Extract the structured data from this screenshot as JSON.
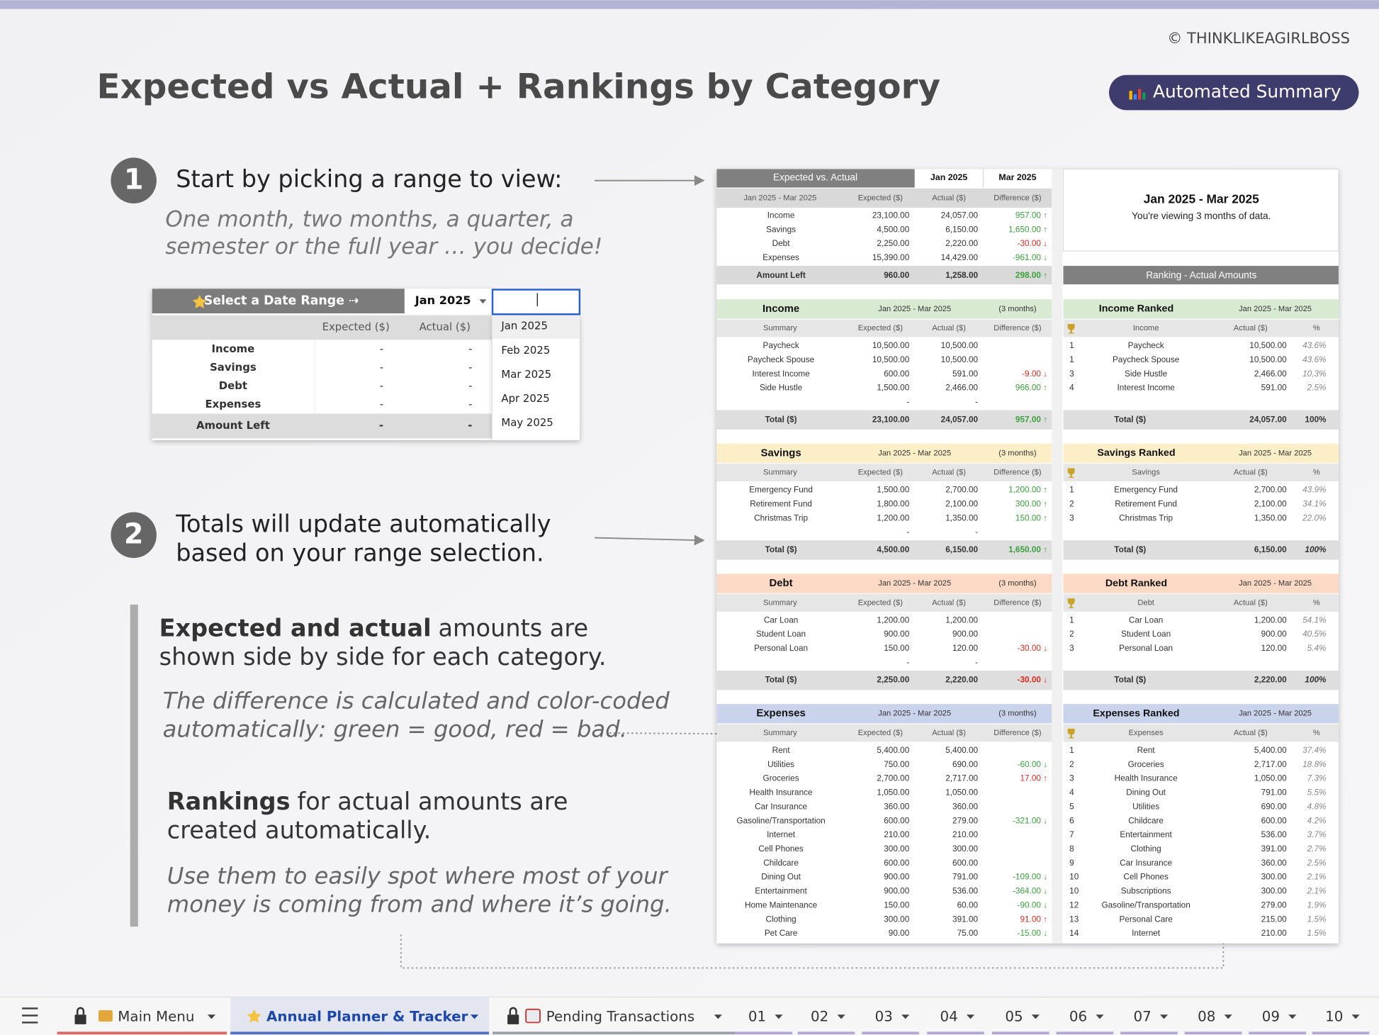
{
  "copyright": "© THINKLIKEAGIRLBOSS",
  "title": "Expected vs Actual + Rankings by Category",
  "badge": "Automated Summary",
  "steps": [
    {
      "number": "1",
      "heading": [
        "Start by picking a range to view:"
      ],
      "subtext": [
        "One month, two months, a quarter, a",
        "semester or the full year … you decide!"
      ]
    },
    {
      "number": "2",
      "heading": [
        "Totals will update automatically",
        "based on your range selection."
      ]
    }
  ],
  "notes": [
    {
      "bold": "Expected and actual",
      "rest": "amounts are",
      "line2": "shown side by side for each category.",
      "italic": [
        "The difference is calculated and color-coded",
        "automatically: green = good, red = bad."
      ]
    },
    {
      "bold": "Rankings",
      "rest": "for actual amounts are",
      "line2": "created automatically.",
      "italic": [
        "Use them to easily spot where most of your",
        "money is coming from and where it’s going."
      ]
    }
  ],
  "widget": {
    "label": "Select a Date Range ⇢",
    "selected": "Jan 2025",
    "columns": [
      "Expected ($)",
      "Actual ($)"
    ],
    "rows": [
      [
        "Income",
        "-",
        "-"
      ],
      [
        "Savings",
        "-",
        "-"
      ],
      [
        "Debt",
        "-",
        "-"
      ],
      [
        "Expenses",
        "-",
        "-"
      ]
    ],
    "total": [
      "Amount Left",
      "-",
      "-"
    ],
    "options": [
      "Jan 2025",
      "Feb 2025",
      "Mar 2025",
      "Apr 2025",
      "May 2025"
    ]
  },
  "sheet": {
    "tone_colors": {
      "good": "#3aa13c",
      "bad": "#e02b20"
    },
    "overview": {
      "title": "Expected vs. Actual",
      "from": "Jan 2025",
      "to": "Mar 2025",
      "columns": [
        "Jan 2025 - Mar 2025",
        "Expected ($)",
        "Actual ($)",
        "Difference ($)"
      ],
      "rows": [
        [
          "Income",
          "23,100.00",
          "24,057.00",
          "957.00 ↑"
        ],
        [
          "Savings",
          "4,500.00",
          "6,150.00",
          "1,650.00 ↑"
        ],
        [
          "Debt",
          "2,250.00",
          "2,220.00",
          "-30.00 ↓"
        ],
        [
          "Expenses",
          "15,390.00",
          "14,429.00",
          "-961.00 ↓"
        ]
      ],
      "tones": [
        "good",
        "good",
        "bad",
        "good"
      ],
      "total": [
        "Amount Left",
        "960.00",
        "1,258.00",
        "298.00 ↑"
      ],
      "total_tone": "good"
    },
    "info": {
      "range": "Jan 2025 - Mar 2025",
      "note": "You're viewing 3 months of data."
    },
    "ranking_title": "Ranking - Actual Amounts",
    "sections": [
      {
        "name": "Income",
        "color": "#d9ead3",
        "range": "Jan 2025 - Mar 2025",
        "months": "(3 months)",
        "columns": [
          "Summary",
          "Expected ($)",
          "Actual ($)",
          "Difference ($)"
        ],
        "rows": [
          [
            "Paycheck",
            "10,500.00",
            "10,500.00"
          ],
          [
            "Paycheck Spouse",
            "10,500.00",
            "10,500.00"
          ],
          [
            "Interest Income",
            "600.00",
            "591.00",
            "-9.00 ↓"
          ],
          [
            "Side Hustle",
            "1,500.00",
            "2,466.00",
            "966.00 ↑"
          ]
        ],
        "tones": [
          null,
          null,
          "bad",
          "good"
        ],
        "placeholder": [
          "-",
          "-"
        ],
        "total": [
          "Total ($)",
          "23,100.00",
          "24,057.00",
          "957.00 ↑"
        ],
        "total_tone": "good",
        "ranked": {
          "name": "Income Ranked",
          "range": "Jan 2025 - Mar 2025",
          "columns": [
            "Income",
            "Actual ($)",
            "%"
          ],
          "rows": [
            [
              "1",
              "Paycheck",
              "10,500.00",
              "43.6%"
            ],
            [
              "1",
              "Paycheck Spouse",
              "10,500.00",
              "43.6%"
            ],
            [
              "3",
              "Side Hustle",
              "2,466.00",
              "10.3%"
            ],
            [
              "4",
              "Interest Income",
              "591.00",
              "2.5%"
            ]
          ],
          "total": [
            "Total ($)",
            "24,057.00",
            "100%"
          ]
        }
      },
      {
        "name": "Savings",
        "color": "#fcefc7",
        "range": "Jan 2025 - Mar 2025",
        "months": "(3 months)",
        "columns": [
          "Summary",
          "Expected ($)",
          "Actual ($)",
          "Difference ($)"
        ],
        "rows": [
          [
            "Emergency Fund",
            "1,500.00",
            "2,700.00",
            "1,200.00 ↑"
          ],
          [
            "Retirement Fund",
            "1,800.00",
            "2,100.00",
            "300.00 ↑"
          ],
          [
            "Christmas Trip",
            "1,200.00",
            "1,350.00",
            "150.00 ↑"
          ]
        ],
        "tones": [
          "good",
          "good",
          "good"
        ],
        "placeholder": [
          "-",
          "-"
        ],
        "total": [
          "Total ($)",
          "4,500.00",
          "6,150.00",
          "1,650.00 ↑"
        ],
        "total_tone": "good",
        "ranked": {
          "name": "Savings Ranked",
          "range": "Jan 2025 - Mar 2025",
          "columns": [
            "Savings",
            "Actual ($)",
            "%"
          ],
          "rows": [
            [
              "1",
              "Emergency Fund",
              "2,700.00",
              "43.9%"
            ],
            [
              "2",
              "Retirement Fund",
              "2,100.00",
              "34.1%"
            ],
            [
              "3",
              "Christmas Trip",
              "1,350.00",
              "22.0%"
            ]
          ],
          "total": [
            "Total ($)",
            "6,150.00",
            "100%"
          ]
        }
      },
      {
        "name": "Debt",
        "color": "#fcd9c4",
        "range": "Jan 2025 - Mar 2025",
        "months": "(3 months)",
        "columns": [
          "Summary",
          "Expected ($)",
          "Actual ($)",
          "Difference ($)"
        ],
        "rows": [
          [
            "Car Loan",
            "1,200.00",
            "1,200.00"
          ],
          [
            "Student Loan",
            "900.00",
            "900.00"
          ],
          [
            "Personal Loan",
            "150.00",
            "120.00",
            "-30.00 ↓"
          ]
        ],
        "tones": [
          null,
          null,
          "bad"
        ],
        "placeholder": [
          "-",
          "-"
        ],
        "total": [
          "Total ($)",
          "2,250.00",
          "2,220.00",
          "-30.00 ↓"
        ],
        "total_tone": "bad",
        "ranked": {
          "name": "Debt Ranked",
          "range": "Jan 2025 - Mar 2025",
          "columns": [
            "Debt",
            "Actual ($)",
            "%"
          ],
          "rows": [
            [
              "1",
              "Car Loan",
              "1,200.00",
              "54.1%"
            ],
            [
              "2",
              "Student Loan",
              "900.00",
              "40.5%"
            ],
            [
              "3",
              "Personal Loan",
              "120.00",
              "5.4%"
            ]
          ],
          "total": [
            "Total ($)",
            "2,220.00",
            "100%"
          ]
        }
      },
      {
        "name": "Expenses",
        "color": "#c9d4ec",
        "range": "Jan 2025 - Mar 2025",
        "months": "(3 months)",
        "columns": [
          "Summary",
          "Expected ($)",
          "Actual ($)",
          "Difference ($)"
        ],
        "rows": [
          [
            "Rent",
            "5,400.00",
            "5,400.00"
          ],
          [
            "Utilities",
            "750.00",
            "690.00",
            "-60.00 ↓"
          ],
          [
            "Groceries",
            "2,700.00",
            "2,717.00",
            "17.00 ↑"
          ],
          [
            "Health Insurance",
            "1,050.00",
            "1,050.00"
          ],
          [
            "Car Insurance",
            "360.00",
            "360.00"
          ],
          [
            "Gasoline/Transportation",
            "600.00",
            "279.00",
            "-321.00 ↓"
          ],
          [
            "Internet",
            "210.00",
            "210.00"
          ],
          [
            "Cell Phones",
            "300.00",
            "300.00"
          ],
          [
            "Childcare",
            "600.00",
            "600.00"
          ],
          [
            "Dining Out",
            "900.00",
            "791.00",
            "-109.00 ↓"
          ],
          [
            "Entertainment",
            "900.00",
            "536.00",
            "-364.00 ↓"
          ],
          [
            "Home Maintenance",
            "150.00",
            "60.00",
            "-90.00 ↓"
          ],
          [
            "Clothing",
            "300.00",
            "391.00",
            "91.00 ↑"
          ],
          [
            "Pet Care",
            "90.00",
            "75.00",
            "-15.00 ↓"
          ]
        ],
        "tones": [
          null,
          "good",
          "bad",
          null,
          null,
          "good",
          null,
          null,
          null,
          "good",
          "good",
          "good",
          "bad",
          "good"
        ],
        "ranked": {
          "name": "Expenses Ranked",
          "range": "Jan 2025 - Mar 2025",
          "columns": [
            "Expenses",
            "Actual ($)",
            "%"
          ],
          "rows": [
            [
              "1",
              "Rent",
              "5,400.00",
              "37.4%"
            ],
            [
              "2",
              "Groceries",
              "2,717.00",
              "18.8%"
            ],
            [
              "3",
              "Health Insurance",
              "1,050.00",
              "7.3%"
            ],
            [
              "4",
              "Dining Out",
              "791.00",
              "5.5%"
            ],
            [
              "5",
              "Utilities",
              "690.00",
              "4.8%"
            ],
            [
              "6",
              "Childcare",
              "600.00",
              "4.2%"
            ],
            [
              "7",
              "Entertainment",
              "536.00",
              "3.7%"
            ],
            [
              "8",
              "Clothing",
              "391.00",
              "2.7%"
            ],
            [
              "9",
              "Car Insurance",
              "360.00",
              "2.5%"
            ],
            [
              "10",
              "Cell Phones",
              "300.00",
              "2.1%"
            ],
            [
              "10",
              "Subscriptions",
              "300.00",
              "2.1%"
            ],
            [
              "12",
              "Gasoline/Transportation",
              "279.00",
              "1.9%"
            ],
            [
              "13",
              "Personal Care",
              "215.00",
              "1.5%"
            ],
            [
              "14",
              "Internet",
              "210.00",
              "1.5%"
            ]
          ]
        }
      }
    ]
  },
  "tabs": [
    "Main Menu",
    "Annual Planner & Tracker",
    "Pending Transactions",
    "01",
    "02",
    "03",
    "04",
    "05",
    "06",
    "07",
    "08",
    "09",
    "10"
  ]
}
